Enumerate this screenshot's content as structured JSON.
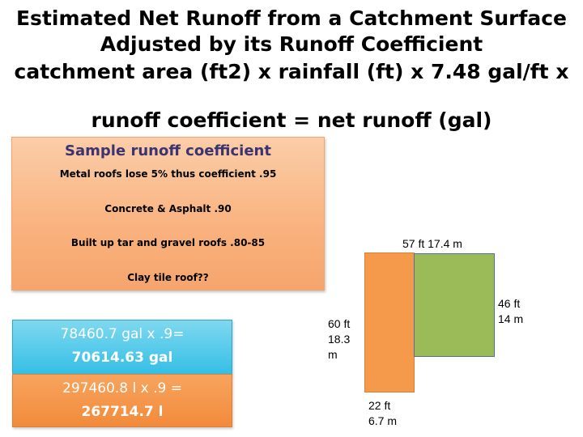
{
  "header": {
    "line1": "Estimated Net Runoff from a Catchment Surface",
    "line2": "Adjusted by its Runoff Coefficient",
    "line3": "catchment area (ft2) x rainfall (ft) x 7.48 gal/ft x",
    "line4": "runoff coefficient = net runoff (gal)"
  },
  "coefficients": {
    "title": "Sample runoff coefficient",
    "items": [
      "Metal roofs lose 5% thus coefficient .95",
      "Concrete & Asphalt .90",
      "Built up tar and gravel roofs .80-85",
      "Clay tile roof??"
    ]
  },
  "calc": {
    "gallons_expr": "78460.7 gal x .9=",
    "gallons_result": "70614.63 gal",
    "liters_expr": "297460.8 l x .9 =",
    "liters_result": "267714.7 l"
  },
  "diagram": {
    "top_label": "57 ft 17.4 m",
    "right_label": [
      "46 ft",
      "14 m"
    ],
    "left_label": [
      "60 ft",
      "18.3",
      "m"
    ],
    "bottom_label": [
      "22 ft",
      "6.7 m"
    ],
    "colors": {
      "left_section": "#f59a4a",
      "right_section": "#9bbb59"
    }
  }
}
